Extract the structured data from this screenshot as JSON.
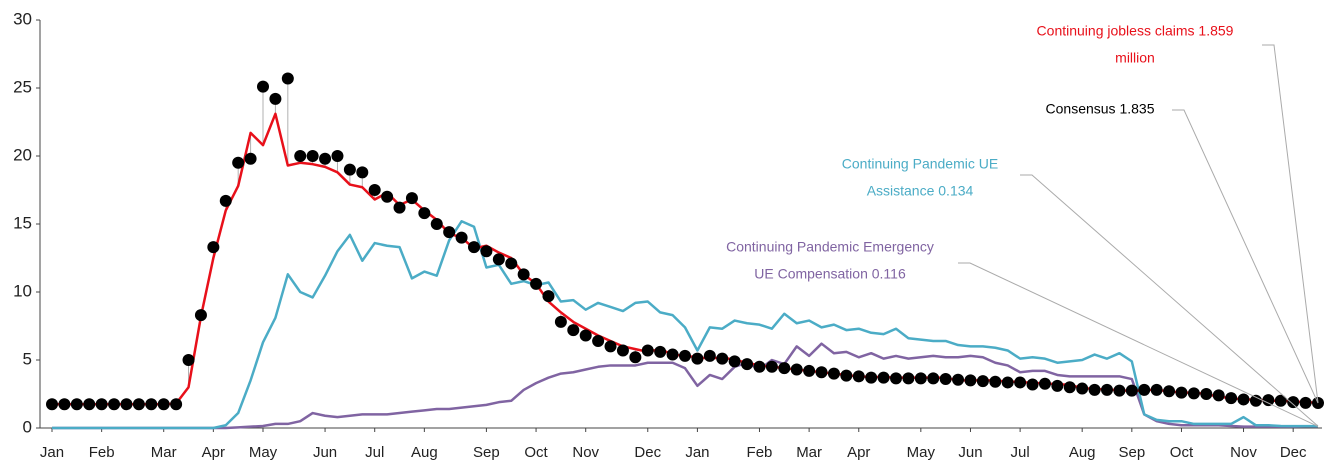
{
  "chart_data": {
    "type": "line",
    "categories": [
      "Jan",
      null,
      null,
      null,
      "Feb",
      null,
      null,
      null,
      null,
      "Mar",
      null,
      null,
      null,
      "Apr",
      null,
      null,
      null,
      "May",
      null,
      null,
      null,
      null,
      "Jun",
      null,
      null,
      null,
      "Jul",
      null,
      null,
      null,
      "Aug",
      null,
      null,
      null,
      null,
      "Sep",
      null,
      null,
      null,
      "Oct",
      null,
      null,
      null,
      "Nov",
      null,
      null,
      null,
      null,
      "Dec",
      null,
      null,
      null,
      "Jan",
      null,
      null,
      null,
      null,
      "Feb",
      null,
      null,
      null,
      "Mar",
      null,
      null,
      null,
      "Apr",
      null,
      null,
      null,
      null,
      "May",
      null,
      null,
      null,
      "Jun",
      null,
      null,
      null,
      "Jul",
      null,
      null,
      null,
      null,
      "Aug",
      null,
      null,
      null,
      "Sep",
      null,
      null,
      null,
      "Oct",
      null,
      null,
      null,
      null,
      "Nov",
      null,
      null,
      null,
      "Dec",
      null,
      null
    ],
    "series": [
      {
        "style": "markers",
        "color": "#000000",
        "values": [
          1.75,
          1.75,
          1.75,
          1.75,
          1.75,
          1.75,
          1.75,
          1.75,
          1.75,
          1.75,
          1.75,
          5.0,
          8.3,
          13.3,
          16.7,
          19.5,
          19.8,
          25.1,
          24.2,
          25.7,
          20.0,
          20.0,
          19.8,
          20.0,
          19.0,
          18.8,
          17.5,
          17.0,
          16.2,
          16.9,
          15.8,
          15.0,
          14.4,
          14.0,
          13.3,
          13.0,
          12.4,
          12.1,
          11.3,
          10.6,
          9.7,
          7.8,
          7.2,
          6.8,
          6.4,
          6.0,
          5.7,
          5.2,
          5.7,
          5.6,
          5.4,
          5.3,
          5.1,
          5.3,
          5.1,
          4.9,
          4.7,
          4.5,
          4.5,
          4.4,
          4.3,
          4.2,
          4.1,
          4.0,
          3.85,
          3.8,
          3.7,
          3.7,
          3.65,
          3.65,
          3.65,
          3.65,
          3.6,
          3.55,
          3.5,
          3.45,
          3.4,
          3.35,
          3.35,
          3.2,
          3.25,
          3.1,
          3.0,
          2.9,
          2.8,
          2.8,
          2.75,
          2.75,
          2.8,
          2.8,
          2.7,
          2.6,
          2.55,
          2.5,
          2.4,
          2.2,
          2.1,
          2.0,
          2.05,
          2.0,
          1.9,
          1.85,
          1.835
        ]
      },
      {
        "style": "line",
        "color": "#e8101a",
        "values": [
          1.75,
          1.75,
          1.75,
          1.75,
          1.75,
          1.75,
          1.75,
          1.75,
          1.75,
          1.75,
          1.8,
          3.0,
          8.2,
          12.5,
          16.0,
          17.8,
          21.7,
          20.8,
          23.1,
          19.3,
          19.5,
          19.4,
          19.2,
          18.8,
          17.9,
          17.7,
          16.8,
          17.3,
          16.4,
          16.8,
          16.0,
          15.3,
          14.3,
          14.0,
          13.2,
          13.4,
          12.9,
          12.5,
          11.3,
          10.6,
          9.3,
          8.5,
          7.8,
          7.3,
          6.8,
          6.4,
          6.0,
          5.8,
          5.6,
          5.8,
          5.4,
          5.3,
          5.2,
          5.1,
          5.2,
          5.0,
          4.8,
          4.6,
          4.5,
          4.4,
          4.3,
          4.2,
          4.1,
          4.0,
          3.9,
          3.8,
          3.75,
          3.75,
          3.7,
          3.7,
          3.7,
          3.7,
          3.7,
          3.5,
          3.5,
          3.5,
          3.5,
          3.4,
          3.4,
          3.3,
          3.3,
          3.2,
          3.2,
          2.9,
          2.9,
          2.8,
          2.8,
          2.7,
          2.8,
          2.8,
          2.7,
          2.6,
          2.6,
          2.5,
          2.3,
          2.2,
          2.1,
          2.1,
          2.0,
          2.0,
          1.95,
          1.9,
          1.859
        ]
      },
      {
        "style": "line",
        "color": "#4bacc6",
        "values": [
          0,
          0,
          0,
          0,
          0,
          0,
          0,
          0,
          0,
          0,
          0,
          0,
          0,
          0,
          0.2,
          1.1,
          3.5,
          6.3,
          8.1,
          11.3,
          10.0,
          9.6,
          11.2,
          13.0,
          14.2,
          12.3,
          13.6,
          13.4,
          13.3,
          11.0,
          11.5,
          11.2,
          13.8,
          15.2,
          14.8,
          11.8,
          12.0,
          10.6,
          10.8,
          10.5,
          10.7,
          9.3,
          9.4,
          8.7,
          9.2,
          8.9,
          8.6,
          9.2,
          9.3,
          8.5,
          8.3,
          7.4,
          5.7,
          7.4,
          7.3,
          7.9,
          7.7,
          7.6,
          7.3,
          8.4,
          7.7,
          7.9,
          7.4,
          7.6,
          7.2,
          7.3,
          7.0,
          6.9,
          7.3,
          6.6,
          6.5,
          6.4,
          6.4,
          6.1,
          6.0,
          6.0,
          5.9,
          5.7,
          5.1,
          5.2,
          5.1,
          4.8,
          4.9,
          5.0,
          5.4,
          5.1,
          5.5,
          4.9,
          1.0,
          0.6,
          0.5,
          0.5,
          0.3,
          0.3,
          0.3,
          0.3,
          0.8,
          0.2,
          0.2,
          0.15,
          0.14,
          0.134,
          0.134
        ]
      },
      {
        "style": "line",
        "color": "#8064a2",
        "values": [
          0,
          0,
          0,
          0,
          0,
          0,
          0,
          0,
          0,
          0,
          0,
          0,
          0,
          0,
          0,
          0.05,
          0.1,
          0.15,
          0.3,
          0.3,
          0.5,
          1.1,
          0.9,
          0.8,
          0.9,
          1.0,
          1.0,
          1.0,
          1.1,
          1.2,
          1.3,
          1.4,
          1.4,
          1.5,
          1.6,
          1.7,
          1.9,
          2.0,
          2.8,
          3.3,
          3.7,
          4.0,
          4.1,
          4.3,
          4.5,
          4.6,
          4.6,
          4.6,
          4.8,
          4.8,
          4.8,
          4.4,
          3.1,
          3.9,
          3.6,
          4.5,
          4.8,
          4.3,
          5.0,
          4.7,
          6.0,
          5.3,
          6.2,
          5.5,
          5.6,
          5.2,
          5.5,
          5.1,
          5.3,
          5.1,
          5.2,
          5.3,
          5.2,
          5.2,
          5.3,
          5.2,
          4.8,
          4.6,
          4.1,
          4.2,
          4.2,
          3.9,
          3.8,
          3.8,
          3.8,
          3.8,
          3.8,
          3.6,
          1.0,
          0.5,
          0.3,
          0.2,
          0.2,
          0.2,
          0.2,
          0.15,
          0.1,
          0.1,
          0.1,
          0.1,
          0.1,
          0.116,
          0.116
        ]
      }
    ],
    "ylim": [
      0,
      30
    ],
    "yticks": [
      0,
      5,
      10,
      15,
      20,
      25,
      30
    ],
    "grid": false,
    "annotations": [
      {
        "lines": [
          "Continuing jobless claims 1.859",
          "million"
        ],
        "color": "#e8101a"
      },
      {
        "lines": [
          "Consensus 1.835"
        ],
        "color": "#000000"
      },
      {
        "lines": [
          "Continuing Pandemic UE",
          "Assistance 0.134"
        ],
        "color": "#4bacc6"
      },
      {
        "lines": [
          "Continuing Pandemic Emergency",
          "UE Compensation 0.116"
        ],
        "color": "#8064a2"
      }
    ]
  }
}
